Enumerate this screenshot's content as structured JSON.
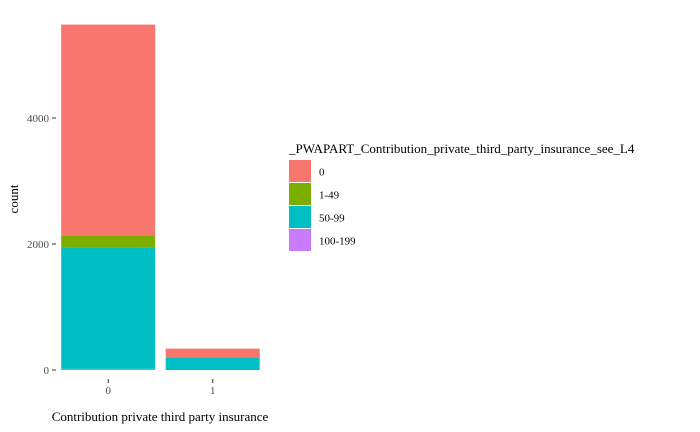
{
  "chart_data": {
    "type": "bar",
    "stacked": true,
    "categories": [
      "0",
      "1"
    ],
    "series": [
      {
        "name": "0",
        "color": "#F8766D",
        "values": [
          3350,
          150
        ]
      },
      {
        "name": "1-49",
        "color": "#7CAE00",
        "values": [
          190,
          0
        ]
      },
      {
        "name": "50-99",
        "color": "#00BFC4",
        "values": [
          1925,
          190
        ]
      },
      {
        "name": "100-199",
        "color": "#C77CFF",
        "values": [
          18,
          0
        ]
      }
    ],
    "xlabel": "Contribution private third party insurance",
    "ylabel": "count",
    "ylim": [
      0,
      5500
    ],
    "yticks": [
      0,
      2000,
      4000
    ],
    "grid": false,
    "legend": {
      "title": "_PWAPART_Contribution_private_third_party_insurance_see_L4",
      "position": "right"
    }
  }
}
